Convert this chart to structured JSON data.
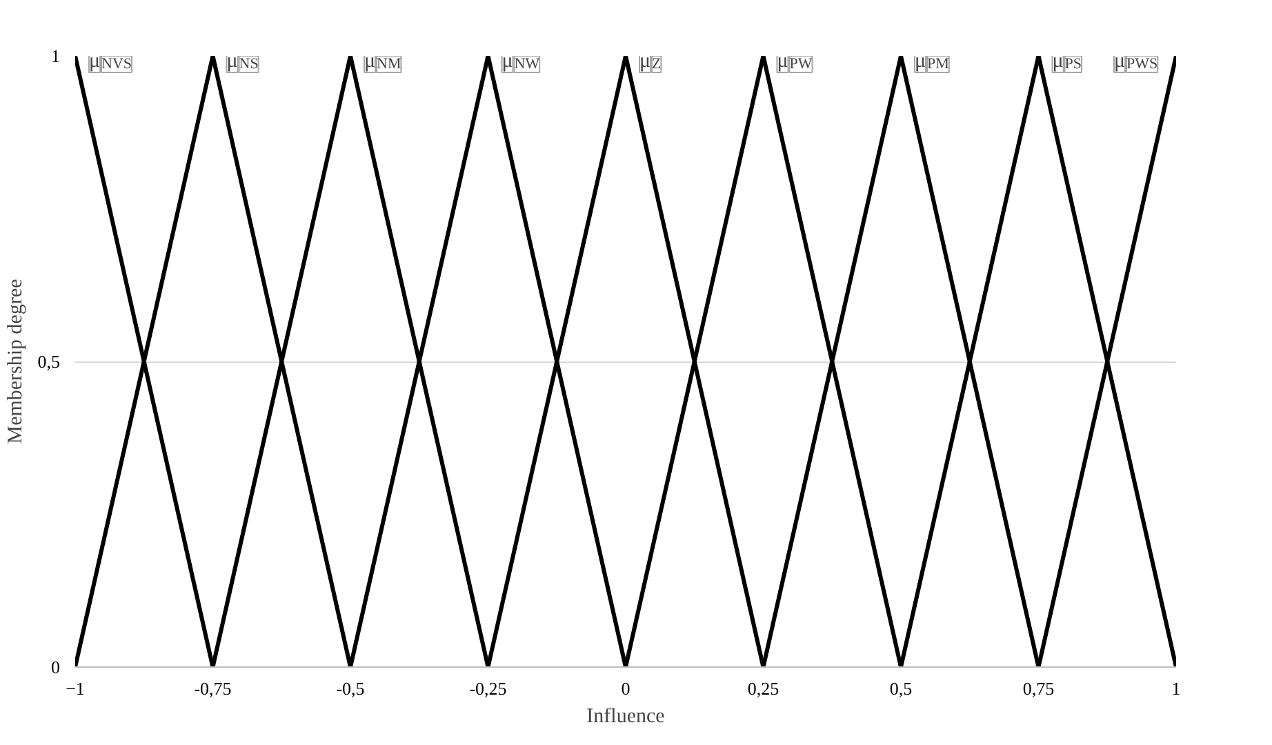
{
  "chart_data": {
    "type": "line",
    "xlabel": "Influence",
    "ylabel": "Membership degree",
    "xlim": [
      -1,
      1
    ],
    "ylim": [
      0,
      1
    ],
    "xticks": [
      -1,
      {
        "value": -0.75,
        "label": "-0,75"
      },
      {
        "value": -0.5,
        "label": "-0,5"
      },
      {
        "value": -0.25,
        "label": "-0,25"
      },
      0,
      {
        "value": 0.25,
        "label": "0,25"
      },
      {
        "value": 0.5,
        "label": "0,5"
      },
      {
        "value": 0.75,
        "label": "0,75"
      },
      1
    ],
    "yticks": [
      0,
      {
        "value": 0.5,
        "label": "0,5"
      },
      1
    ],
    "grid": "y",
    "legend": false,
    "marker": "none",
    "line_style": "solid",
    "series": [
      {
        "name": "μ$_{NVS}$",
        "color": "#000000",
        "x": [
          -1,
          -0.75
        ],
        "values": [
          1,
          0
        ]
      },
      {
        "name": "μ$_{NS}$",
        "color": "#000000",
        "x": [
          -1,
          -0.75,
          -0.5
        ],
        "values": [
          0,
          1,
          0
        ]
      },
      {
        "name": "μ$_{NM}$",
        "color": "#000000",
        "x": [
          -0.75,
          -0.5,
          -0.25
        ],
        "values": [
          0,
          1,
          0
        ]
      },
      {
        "name": "μ$_{NW}$",
        "color": "#000000",
        "x": [
          -0.5,
          -0.25,
          0
        ],
        "values": [
          0,
          1,
          0
        ]
      },
      {
        "name": "μ$_{Z}$",
        "color": "#000000",
        "x": [
          -0.25,
          0,
          0.25
        ],
        "values": [
          0,
          1,
          0
        ]
      },
      {
        "name": "μ$_{PW}$",
        "color": "#000000",
        "x": [
          0,
          0.25,
          0.5
        ],
        "values": [
          0,
          1,
          0
        ]
      },
      {
        "name": "μ$_{PM}$",
        "color": "#000000",
        "x": [
          0.25,
          0.5,
          0.75
        ],
        "values": [
          0,
          1,
          0
        ]
      },
      {
        "name": "μ$_{PS}$",
        "color": "#000000",
        "x": [
          0.5,
          0.75,
          1
        ],
        "values": [
          0,
          1,
          0
        ]
      },
      {
        "name": "μ$_{PWS}$",
        "color": "#000000",
        "x": [
          0.75,
          1
        ],
        "values": [
          0,
          1
        ]
      }
    ]
  }
}
